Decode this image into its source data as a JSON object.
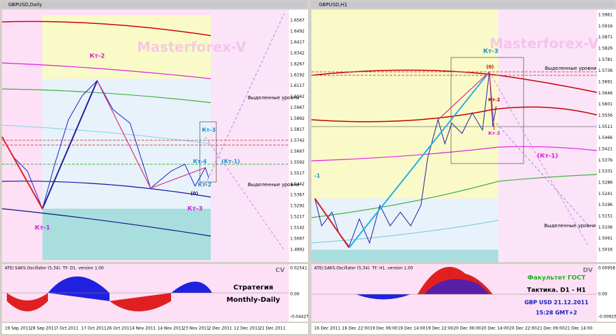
{
  "left_window": {
    "title": "GBPUSD,Daily",
    "price_axis": [
      "1.6567",
      "1.6492",
      "1.6417",
      "1.6342",
      "1.6267",
      "1.6192",
      "1.6117",
      "1.6042",
      "1.5967",
      "1.5892",
      "1.5817",
      "1.5742",
      "1.5667",
      "1.5592",
      "1.5517",
      "1.5442",
      "1.5367",
      "1.5292",
      "1.5217",
      "1.5142",
      "1.5067",
      "1.4992"
    ],
    "time_axis": [
      "19 Sep 2011",
      "28 Sep 2011",
      "7 Oct 2011",
      "17 Oct 2011",
      "26 Oct 2011",
      "4 Nov 2011",
      "14 Nov 2011",
      "23 Nov 2011",
      "2 Dec 2011",
      "12 Dec 2011",
      "21 Dec 2011"
    ],
    "oscillator_axis": [
      "0.02541",
      "0.00",
      "-0.04427"
    ],
    "oscillator_label": "ATEI.SAKS.Oscillator (5,34). TF: D1. version 1.00",
    "panel_tag": "CV",
    "strategy": [
      "Стратегия",
      "Monthly-Daily"
    ],
    "annotations": {
      "watermark": "Masterforex-V",
      "kt2": "Кт-2",
      "kt1": "Кт-1",
      "kt3": "Кт-3",
      "kt3_small": "Кт-3",
      "kt4": "Кт-4",
      "kt1_bracket": "(Кт-1)",
      "kt2_small": "Кт-2",
      "zero": "(0)",
      "levels_top": "Выделенные уровни",
      "levels_bottom": "Выделенные уровни"
    }
  },
  "right_window": {
    "title": "GBPUSD,H1",
    "price_axis": [
      "1.5961",
      "1.5916",
      "1.5871",
      "1.5826",
      "1.5781",
      "1.5736",
      "1.5691",
      "1.5646",
      "1.5601",
      "1.5556",
      "1.5511",
      "1.5466",
      "1.5421",
      "1.5376",
      "1.5331",
      "1.5286",
      "1.5241",
      "1.5196",
      "1.5151",
      "1.5106",
      "1.5061",
      "1.5016"
    ],
    "time_axis": [
      "16 Dec 2011",
      "16 Dec 22:00",
      "19 Dec 06:00",
      "19 Dec 14:00",
      "19 Dec 22:00",
      "20 Dec 06:00",
      "20 Dec 14:00",
      "20 Dec 22:00",
      "21 Dec 06:00",
      "21 Dec 14:00"
    ],
    "oscillator_axis": [
      "0.00958",
      "0.00",
      "-0.00925"
    ],
    "oscillator_label": "ATEI.SAKS.Oscillator (5,34). TF: H1. version 1.00",
    "panel_tag": "DV",
    "info": [
      "Факультет ГОСТ",
      "Тактика. D1 - H1",
      "GBP USD 21.12.2011",
      "15:28 GMT+2"
    ],
    "annotations": {
      "watermark": "Masterforex-V",
      "kt3": "Кт-3",
      "zero": "(0)",
      "kt2": "Кт-2",
      "kt3_small": "Кт-3",
      "kt1_bracket": "(Кт-1)",
      "levels_top": "Выделенные уровни",
      "levels_bottom": "Выделенные уровни",
      "minus_one": "-1"
    }
  }
}
